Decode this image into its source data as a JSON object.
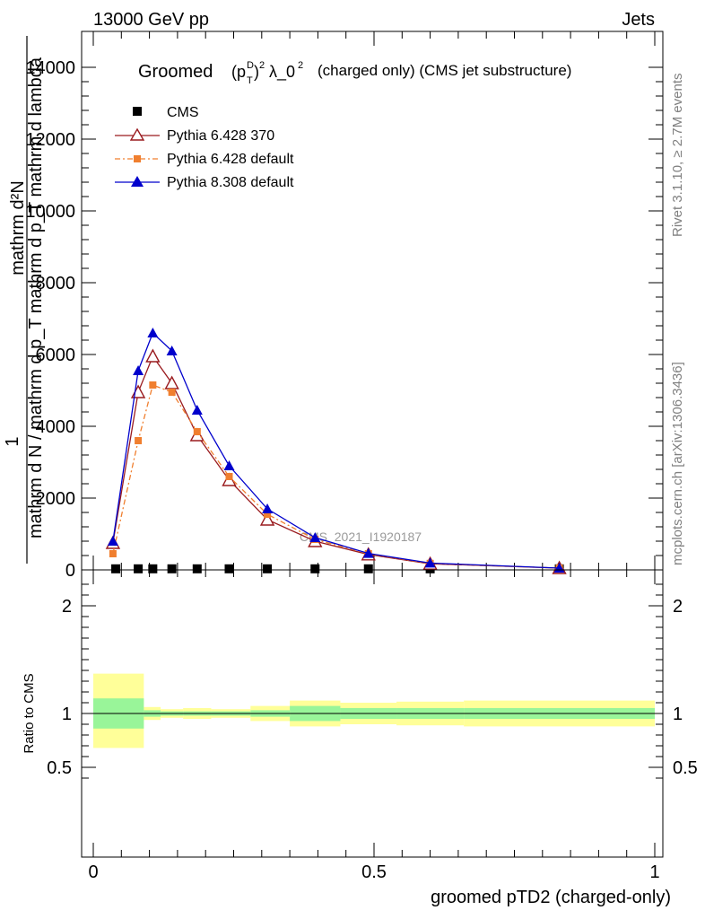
{
  "header": {
    "left": "13000 GeV pp",
    "right": "Jets"
  },
  "side_labels": {
    "rivet": "Rivet 3.1.10, ≥ 2.7M events",
    "mcplots": "mcplots.cern.ch [arXiv:1306.3436]"
  },
  "watermark": "CMS_2021_I1920187",
  "main_ylabel": {
    "numerator": "mathrm d²N",
    "prefix": "1",
    "denominator": "mathrm d N / mathrm d p_T mathrm d p_T mathrm d lambda"
  },
  "colors": {
    "cms": "#000000",
    "py6_370": "#9a1b1f",
    "py6_default": "#f07f2f",
    "py8_default": "#0000cc",
    "band_inner": "#99f599",
    "band_outer": "#ffff99"
  },
  "chart_data": [
    {
      "type": "line",
      "title": "Groomed (p_T^D)^2 λ_0^2  (charged only) (CMS jet substructure)",
      "title_parts": {
        "word": "Groomed",
        "formula": "(pTD)2 λ_02",
        "suffix": "(charged only) (CMS jet substructure)"
      },
      "xlabel": "",
      "ylabel": "1 / (mathrm d N / mathrm d p_T mathrm d p_T mathrm d lambda) · mathrm d²N",
      "xlim": [
        0,
        1
      ],
      "ylim": [
        0,
        15000
      ],
      "yticks": [
        0,
        2000,
        4000,
        6000,
        8000,
        10000,
        12000,
        14000
      ],
      "ytick_labels": [
        "0",
        "2000",
        "4000",
        "6000",
        "8000",
        "10000",
        "12000",
        "14000"
      ],
      "legend_position": "top-left",
      "series": [
        {
          "name": "CMS",
          "marker": "square",
          "x": [
            0.04,
            0.08,
            0.106,
            0.14,
            0.185,
            0.242,
            0.31,
            0.395,
            0.49,
            0.6,
            0.83
          ],
          "y": [
            30,
            30,
            30,
            30,
            30,
            30,
            30,
            30,
            30,
            30,
            30
          ]
        },
        {
          "name": "Pythia 6.428 370",
          "marker": "open-triangle",
          "x": [
            0.035,
            0.08,
            0.106,
            0.14,
            0.185,
            0.242,
            0.31,
            0.395,
            0.49,
            0.6,
            0.83
          ],
          "y": [
            750,
            4950,
            5950,
            5200,
            3750,
            2500,
            1400,
            800,
            430,
            170,
            50
          ]
        },
        {
          "name": "Pythia 6.428 default",
          "marker": "square",
          "x": [
            0.035,
            0.08,
            0.106,
            0.14,
            0.185,
            0.242,
            0.31,
            0.395,
            0.49,
            0.6,
            0.83
          ],
          "y": [
            450,
            3600,
            5150,
            4950,
            3850,
            2600,
            1550,
            850,
            450,
            180,
            50
          ]
        },
        {
          "name": "Pythia 8.308 default",
          "marker": "triangle",
          "x": [
            0.035,
            0.08,
            0.106,
            0.14,
            0.185,
            0.242,
            0.31,
            0.395,
            0.49,
            0.6,
            0.83
          ],
          "y": [
            800,
            5550,
            6600,
            6100,
            4450,
            2900,
            1700,
            900,
            460,
            190,
            50
          ]
        }
      ]
    },
    {
      "type": "area",
      "title": "",
      "xlabel": "groomed pTD2 (charged-only)",
      "ylabel": "Ratio to CMS",
      "xlim": [
        0,
        1
      ],
      "ylim": [
        0.3,
        2.3
      ],
      "yticks": [
        0.5,
        1,
        2
      ],
      "ytick_labels": [
        "0.5",
        "1",
        "2"
      ],
      "xticks": [
        0,
        0.5,
        1
      ],
      "xtick_labels": [
        "0",
        "0.5",
        "1"
      ],
      "reference_line": 1,
      "bin_edges": [
        0,
        0.09,
        0.12,
        0.16,
        0.21,
        0.28,
        0.35,
        0.44,
        0.54,
        0.66,
        1.0
      ],
      "bands": [
        {
          "name": "inner",
          "low": [
            0.86,
            0.97,
            0.98,
            0.98,
            0.98,
            0.97,
            0.93,
            0.95,
            0.95,
            0.95
          ],
          "high": [
            1.14,
            1.03,
            1.02,
            1.02,
            1.02,
            1.03,
            1.07,
            1.05,
            1.05,
            1.05
          ]
        },
        {
          "name": "outer",
          "low": [
            0.68,
            0.94,
            0.96,
            0.95,
            0.96,
            0.93,
            0.88,
            0.9,
            0.89,
            0.88
          ],
          "high": [
            1.37,
            1.06,
            1.04,
            1.05,
            1.04,
            1.07,
            1.12,
            1.1,
            1.11,
            1.12
          ]
        }
      ]
    }
  ]
}
